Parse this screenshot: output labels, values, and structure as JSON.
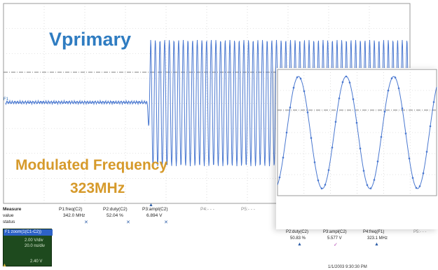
{
  "overlay": {
    "title": "Vprimary",
    "subtitle_line1": "Modulated Frequency",
    "subtitle_line2": "323MHz"
  },
  "channel_label": "F1",
  "measurements": {
    "row_labels": [
      "Measure",
      "value",
      "status"
    ],
    "columns": [
      {
        "name": "P1:freq(C2)",
        "value": "342.0 MHz",
        "status": "✕"
      },
      {
        "name": "P2:duty(C2)",
        "value": "52.04 %",
        "status": "✕"
      },
      {
        "name": "P3:ampl(C2)",
        "value": "6.894 V",
        "status": "✕"
      },
      {
        "name": "P4:- - -",
        "value": "",
        "status": ""
      },
      {
        "name": "P5:- - -",
        "value": "",
        "status": ""
      }
    ]
  },
  "zoom_measurements": [
    {
      "name": "P2:duty(C2)",
      "value": "50.83 %",
      "status": "▲"
    },
    {
      "name": "P3:ampl(C2)",
      "value": "5.577 V",
      "status": "✓"
    },
    {
      "name": "P4:freq(F1)",
      "value": "323.1 MHz",
      "status": "▲"
    },
    {
      "name": "P5:- - -",
      "value": "",
      "status": ""
    }
  ],
  "zoom_box": {
    "title": "F1  zoom(1(C1-C2))",
    "line1": "2.00 V/div",
    "line2": "20.0 ns/div",
    "line3": "2.40 V"
  },
  "timestamp": "1/1/2003 9:30:30 PM",
  "colors": {
    "trace": "#4a78d0",
    "title_blue": "#2f7cc1",
    "annotation_orange": "#d69a2b",
    "grid": "#c8c8c8"
  }
}
